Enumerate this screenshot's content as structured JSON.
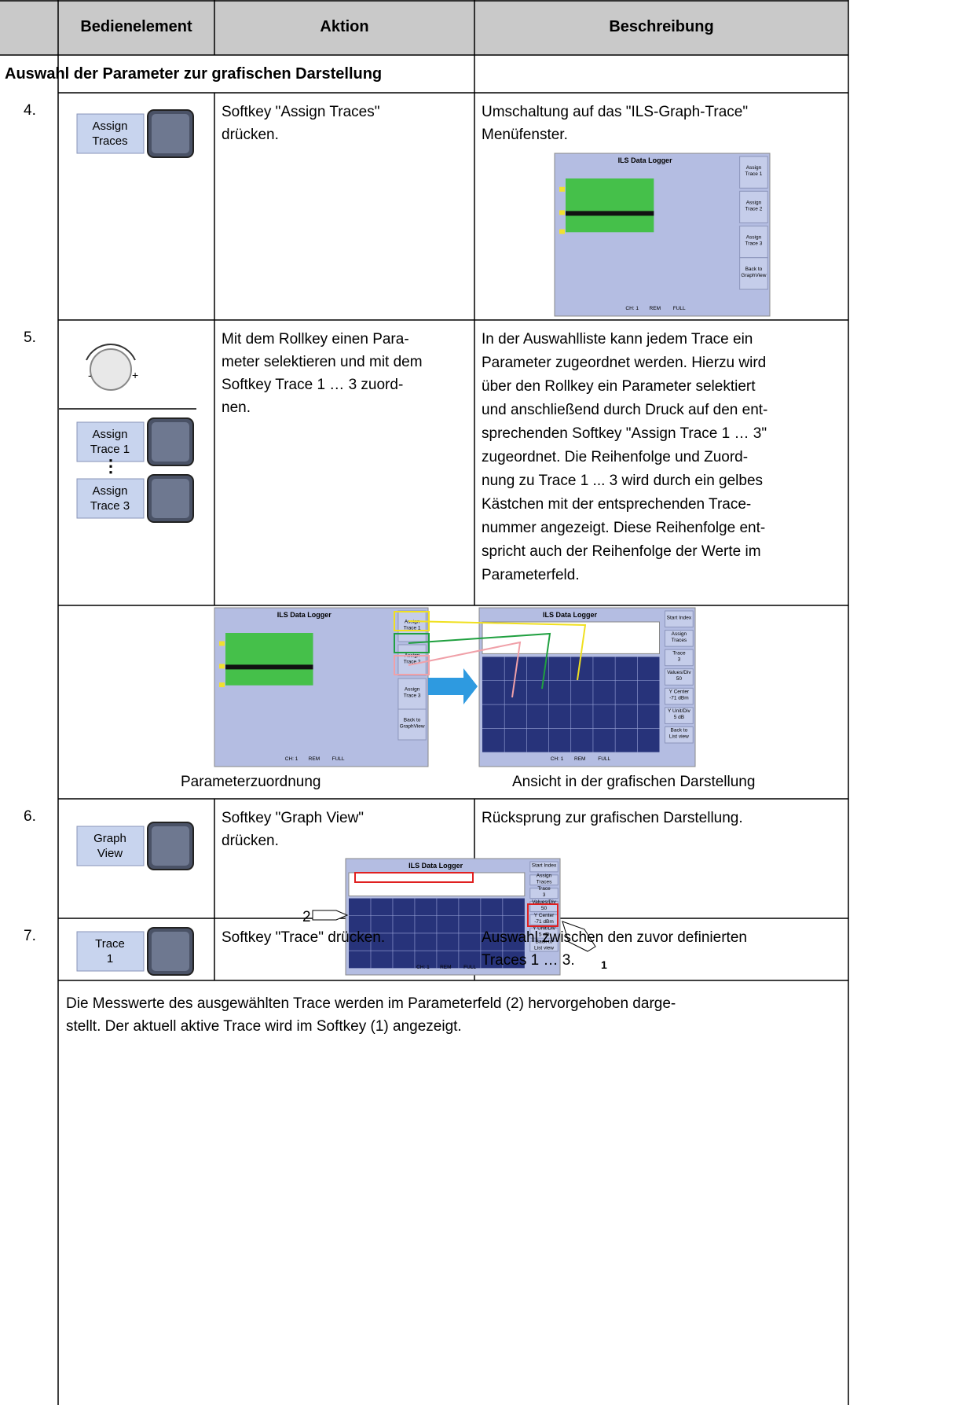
{
  "header": {
    "columns": [
      "Bedienelement",
      "Aktion",
      "Beschreibung"
    ]
  },
  "section": {
    "title": "Auswahl der Parameter zur grafischen Darstellung"
  },
  "rows": [
    {
      "number": "4.",
      "softkeys": [
        [
          "Assign",
          "Traces"
        ]
      ],
      "action": [
        "Softkey \"Assign Traces\"",
        "drücken."
      ],
      "description": [
        "Umschaltung auf das \"ILS-Graph-Trace\"",
        "Menüfenster."
      ]
    },
    {
      "number": "5.",
      "softkeys": [
        [
          "Assign",
          "Trace 1"
        ],
        [
          "Assign",
          "Trace 3"
        ]
      ],
      "action": [
        "Mit dem Rollkey einen Para-",
        "meter selektieren und mit dem",
        "Softkey Trace 1 … 3 zuord-",
        "nen."
      ],
      "description": [
        "In der Auswahlliste kann jedem Trace ein",
        "Parameter zugeordnet werden. Hierzu wird",
        "über den Rollkey ein Parameter selektiert",
        "und anschließend durch Druck auf den ent-",
        "sprechenden Softkey \"Assign Trace 1 … 3\"",
        "zugeordnet. Die Reihenfolge und Zuord-",
        "nung zu Trace 1 ... 3 wird durch ein gelbes",
        "Kästchen mit der entsprechenden Trace-",
        "nummer angezeigt. Diese Reihenfolge ent-",
        "spricht auch der Reihenfolge der Werte im",
        "Parameterfeld."
      ]
    },
    {
      "number": "6.",
      "softkeys": [
        [
          "Graph",
          "View"
        ]
      ],
      "action": [
        "Softkey \"Graph View\"",
        "drücken."
      ],
      "description": [
        "Rücksprung zur grafischen Darstellung."
      ]
    },
    {
      "number": "7.",
      "softkeys": [
        [
          "Trace",
          "1"
        ]
      ],
      "action": [
        "Softkey \"Trace\" drücken."
      ],
      "description": [
        "Auswahl zwischen den zuvor definierten",
        "Traces 1 … 3."
      ]
    }
  ],
  "screens": [
    {
      "title": "ILS Data Logger",
      "kind": "list",
      "softkeys": [
        [
          "Assign",
          "Trace 1"
        ],
        [
          "Assign",
          "Trace 2"
        ],
        [
          "Assign",
          "Trace 3"
        ],
        [
          "Back to",
          "GraphView"
        ]
      ],
      "status": [
        "CH: 1",
        "REM",
        "FULL"
      ]
    },
    {
      "title": "ILS Data Logger",
      "kind": "list",
      "softkeys": [
        [
          "Assign",
          "Trace 1"
        ],
        [
          "Assign",
          "Trace 2"
        ],
        [
          "Assign",
          "Trace 3"
        ],
        [
          "Back to",
          "GraphView"
        ]
      ],
      "status": [
        "CH: 1",
        "REM",
        "FULL"
      ]
    },
    {
      "title": "ILS Data Logger",
      "kind": "graph",
      "softkeys": [
        [
          "Start Index"
        ],
        [
          "Assign",
          "Traces"
        ],
        [
          "Trace",
          "3"
        ],
        [
          "Values/Div",
          "50"
        ],
        [
          "Y Center",
          "-71 dBm"
        ],
        [
          "Y Unit/Div",
          "5 dB"
        ],
        [
          "Back to",
          "List view"
        ]
      ],
      "status": [
        "CH: 1",
        "REM",
        "FULL"
      ]
    },
    {
      "title": "ILS Data Logger",
      "kind": "graph",
      "softkeys": [
        [
          "Start Index"
        ],
        [
          "Assign",
          "Traces"
        ],
        [
          "Trace",
          "3"
        ],
        [
          "Values/Div",
          "50"
        ],
        [
          "Y Center",
          "-71 dBm"
        ],
        [
          "Y Unit/Div",
          "5 dB"
        ],
        [
          "Back to",
          "List view"
        ]
      ],
      "status": [
        "CH: 1",
        "REM",
        "FULL"
      ]
    }
  ],
  "captions": [
    "Parameterzuordnung",
    "Ansicht in der grafischen Darstellung"
  ],
  "note": [
    "Die Messwerte des ausgewählten Trace werden im Parameterfeld (2) hervorgehoben darge-",
    "stellt. Der aktuell aktive Trace wird im Softkey (1) angezeigt."
  ],
  "callouts": [
    "2",
    "1"
  ]
}
